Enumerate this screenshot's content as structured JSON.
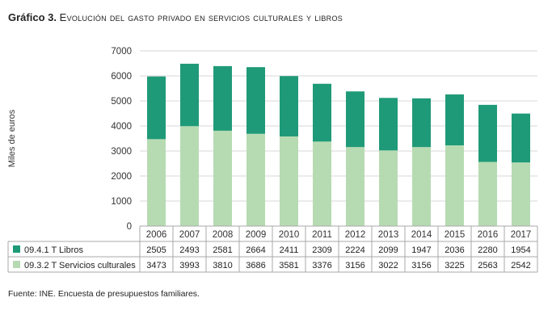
{
  "figure": {
    "label": "Gráfico 3.",
    "title": "Evolución del gasto privado en servicios culturales y libros",
    "source": "Fuente: INE. Encuesta de presupuestos familiares."
  },
  "chart_data": {
    "type": "bar",
    "stacked": true,
    "categories": [
      "2006",
      "2007",
      "2008",
      "2009",
      "2010",
      "2011",
      "2012",
      "2013",
      "2014",
      "2015",
      "2016",
      "2017"
    ],
    "series": [
      {
        "name": "09.3.2 T Servicios culturales",
        "color": "#b6dbb2",
        "values": [
          3473,
          3993,
          3810,
          3686,
          3581,
          3376,
          3156,
          3022,
          3156,
          3225,
          2563,
          2542
        ]
      },
      {
        "name": "09.4.1 T Libros",
        "color": "#1f9a78",
        "values": [
          2505,
          2493,
          2581,
          2664,
          2411,
          2309,
          2224,
          2099,
          1947,
          2036,
          2280,
          1954
        ]
      }
    ],
    "table_order": [
      1,
      0
    ],
    "ylabel": "Miles de euros",
    "ylim": [
      0,
      7000
    ],
    "yticks": [
      0,
      1000,
      2000,
      3000,
      4000,
      5000,
      6000,
      7000
    ],
    "grid": true,
    "legend": "data-table-below"
  }
}
